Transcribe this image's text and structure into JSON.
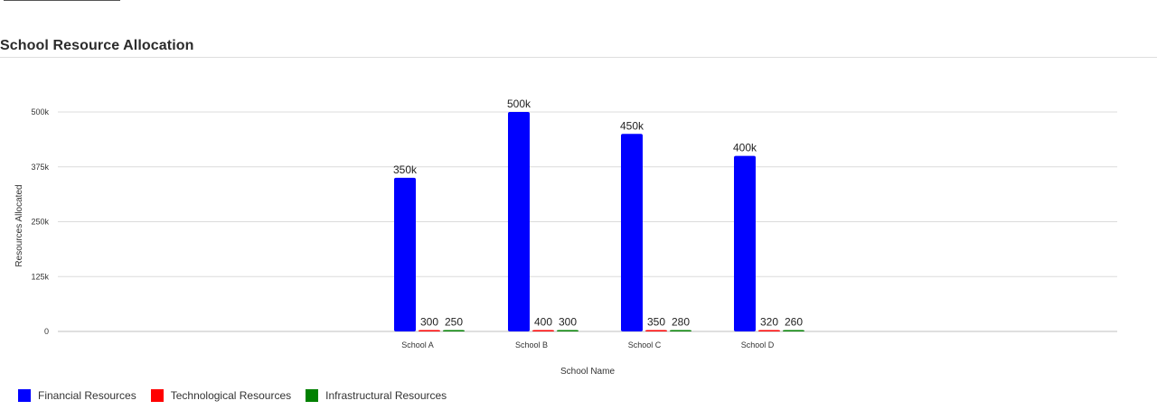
{
  "header": {
    "title": "School Resource Allocation"
  },
  "chart_data": {
    "type": "bar",
    "title": "School Resource Allocation",
    "xlabel": "School Name",
    "ylabel": "Resources Allocated",
    "categories": [
      "School A",
      "School B",
      "School C",
      "School D"
    ],
    "ylim": [
      0,
      550000
    ],
    "yticks": [
      {
        "value": 0,
        "label": "0"
      },
      {
        "value": 125000,
        "label": "125k"
      },
      {
        "value": 250000,
        "label": "250k"
      },
      {
        "value": 375000,
        "label": "375k"
      },
      {
        "value": 500000,
        "label": "500k"
      }
    ],
    "grid": true,
    "legend_position": "bottom-left",
    "series": [
      {
        "name": "Financial Resources",
        "color": "#0000ff",
        "values": [
          350000,
          500000,
          450000,
          400000
        ],
        "labels": [
          "350k",
          "500k",
          "450k",
          "400k"
        ]
      },
      {
        "name": "Technological Resources",
        "color": "#ff0000",
        "values": [
          300,
          400,
          350,
          320
        ],
        "labels": [
          "300",
          "400",
          "350",
          "320"
        ]
      },
      {
        "name": "Infrastructural Resources",
        "color": "#008000",
        "values": [
          250,
          300,
          280,
          260
        ],
        "labels": [
          "250",
          "300",
          "280",
          "260"
        ]
      }
    ]
  }
}
